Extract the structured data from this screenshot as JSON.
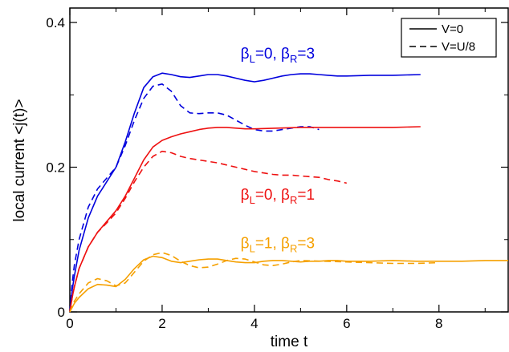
{
  "chart_data": {
    "type": "line",
    "xlabel": "time t",
    "ylabel": "local current <j(t)>",
    "xlim": [
      0,
      9.5
    ],
    "ylim": [
      0,
      0.42
    ],
    "x_ticks": [
      0,
      2,
      4,
      6,
      8
    ],
    "x_tick_labels": [
      "0",
      "2",
      "4",
      "6",
      "8"
    ],
    "y_ticks": [
      0,
      0.2,
      0.4
    ],
    "y_tick_labels": [
      "0",
      "0.2",
      "0.4"
    ],
    "grid": false,
    "legend": {
      "placement": "top-right",
      "entries": [
        {
          "label": "V=0",
          "style": "solid"
        },
        {
          "label": "V=U/8",
          "style": "dashed"
        }
      ]
    },
    "annotations": [
      {
        "text": "βL=0, βR=3",
        "parts": [
          "β",
          "L",
          "=0, β",
          "R",
          "=3"
        ],
        "color": "#0000dd",
        "x": 3.7,
        "y": 0.35
      },
      {
        "text": "βL=0, βR=1",
        "parts": [
          "β",
          "L",
          "=0, β",
          "R",
          "=1"
        ],
        "color": "#ee1111",
        "x": 3.7,
        "y": 0.155
      },
      {
        "text": "βL=1, βR=3",
        "parts": [
          "β",
          "L",
          "=1, β",
          "R",
          "=3"
        ],
        "color": "#f5a000",
        "x": 3.7,
        "y": 0.088
      }
    ],
    "series": [
      {
        "group": "βL=0, βR=3",
        "style": "solid",
        "color": "#0000dd",
        "x": [
          0,
          0.05,
          0.1,
          0.2,
          0.4,
          0.6,
          0.8,
          1.0,
          1.2,
          1.4,
          1.6,
          1.8,
          2.0,
          2.2,
          2.4,
          2.6,
          2.8,
          3.0,
          3.2,
          3.4,
          3.6,
          3.8,
          4.0,
          4.2,
          4.4,
          4.6,
          4.8,
          5.0,
          5.2,
          5.4,
          5.6,
          5.8,
          6.0,
          6.5,
          7.0,
          7.6
        ],
        "y": [
          0,
          0.03,
          0.05,
          0.085,
          0.13,
          0.16,
          0.18,
          0.2,
          0.235,
          0.275,
          0.31,
          0.325,
          0.33,
          0.328,
          0.325,
          0.324,
          0.326,
          0.328,
          0.328,
          0.326,
          0.323,
          0.32,
          0.318,
          0.32,
          0.323,
          0.326,
          0.328,
          0.329,
          0.329,
          0.328,
          0.327,
          0.326,
          0.326,
          0.327,
          0.327,
          0.328
        ]
      },
      {
        "group": "βL=0, βR=3",
        "style": "dashed",
        "color": "#0000dd",
        "x": [
          0,
          0.05,
          0.1,
          0.2,
          0.4,
          0.6,
          0.8,
          1.0,
          1.2,
          1.4,
          1.6,
          1.8,
          2.0,
          2.2,
          2.4,
          2.6,
          2.8,
          3.0,
          3.2,
          3.4,
          3.6,
          3.8,
          4.0,
          4.2,
          4.4,
          4.6,
          4.8,
          5.0,
          5.2,
          5.4
        ],
        "y": [
          0,
          0.04,
          0.065,
          0.1,
          0.145,
          0.17,
          0.185,
          0.2,
          0.23,
          0.265,
          0.295,
          0.312,
          0.315,
          0.305,
          0.285,
          0.275,
          0.274,
          0.275,
          0.275,
          0.272,
          0.265,
          0.258,
          0.252,
          0.25,
          0.25,
          0.252,
          0.254,
          0.256,
          0.256,
          0.252
        ]
      },
      {
        "group": "βL=0, βR=1",
        "style": "solid",
        "color": "#ee1111",
        "x": [
          0,
          0.05,
          0.1,
          0.2,
          0.4,
          0.6,
          0.8,
          1.0,
          1.2,
          1.4,
          1.6,
          1.8,
          2.0,
          2.2,
          2.4,
          2.6,
          2.8,
          3.0,
          3.2,
          3.4,
          3.6,
          3.8,
          4.0,
          4.5,
          5.0,
          5.5,
          6.0,
          6.5,
          7.0,
          7.6
        ],
        "y": [
          0,
          0.02,
          0.035,
          0.06,
          0.09,
          0.11,
          0.125,
          0.14,
          0.16,
          0.185,
          0.21,
          0.228,
          0.237,
          0.242,
          0.246,
          0.249,
          0.252,
          0.254,
          0.255,
          0.255,
          0.254,
          0.253,
          0.253,
          0.254,
          0.255,
          0.255,
          0.255,
          0.255,
          0.255,
          0.256
        ]
      },
      {
        "group": "βL=0, βR=1",
        "style": "dashed",
        "color": "#ee1111",
        "x": [
          0,
          0.05,
          0.1,
          0.2,
          0.4,
          0.6,
          0.8,
          1.0,
          1.2,
          1.4,
          1.6,
          1.8,
          2.0,
          2.2,
          2.4,
          2.6,
          2.8,
          3.0,
          3.2,
          3.4,
          3.6,
          3.8,
          4.0,
          4.2,
          4.4,
          4.6,
          4.8,
          5.0,
          5.2,
          5.4,
          5.6,
          5.8,
          6.0
        ],
        "y": [
          0,
          0.02,
          0.035,
          0.06,
          0.09,
          0.11,
          0.123,
          0.137,
          0.157,
          0.18,
          0.2,
          0.215,
          0.222,
          0.22,
          0.215,
          0.212,
          0.21,
          0.208,
          0.206,
          0.203,
          0.2,
          0.197,
          0.194,
          0.192,
          0.19,
          0.189,
          0.189,
          0.188,
          0.187,
          0.186,
          0.183,
          0.181,
          0.178
        ]
      },
      {
        "group": "βL=1, βR=3",
        "style": "solid",
        "color": "#f5a000",
        "x": [
          0,
          0.1,
          0.2,
          0.4,
          0.6,
          0.8,
          1.0,
          1.2,
          1.4,
          1.6,
          1.8,
          2.0,
          2.2,
          2.4,
          2.6,
          2.8,
          3.0,
          3.2,
          3.4,
          3.6,
          3.8,
          4.0,
          4.2,
          4.4,
          4.6,
          4.8,
          5.0,
          5.2,
          5.4,
          5.6,
          5.8,
          6.0,
          6.5,
          7.0,
          7.5,
          8.0,
          8.5,
          9.0,
          9.5
        ],
        "y": [
          0,
          0.012,
          0.02,
          0.032,
          0.038,
          0.037,
          0.035,
          0.045,
          0.06,
          0.072,
          0.077,
          0.075,
          0.07,
          0.068,
          0.07,
          0.072,
          0.073,
          0.073,
          0.071,
          0.069,
          0.068,
          0.068,
          0.07,
          0.071,
          0.071,
          0.07,
          0.069,
          0.07,
          0.07,
          0.071,
          0.071,
          0.07,
          0.07,
          0.071,
          0.07,
          0.07,
          0.07,
          0.071,
          0.071
        ]
      },
      {
        "group": "βL=1, βR=3",
        "style": "dashed",
        "color": "#f5a000",
        "x": [
          0,
          0.1,
          0.2,
          0.4,
          0.6,
          0.8,
          1.0,
          1.2,
          1.4,
          1.6,
          1.8,
          2.0,
          2.2,
          2.4,
          2.6,
          2.8,
          3.0,
          3.2,
          3.4,
          3.6,
          3.8,
          4.0,
          4.2,
          4.4,
          4.6,
          4.8,
          5.0,
          5.5,
          6.0,
          6.5,
          7.0,
          7.5,
          8.0
        ],
        "y": [
          0,
          0.015,
          0.025,
          0.04,
          0.046,
          0.043,
          0.036,
          0.04,
          0.055,
          0.07,
          0.079,
          0.082,
          0.078,
          0.07,
          0.064,
          0.061,
          0.062,
          0.066,
          0.071,
          0.074,
          0.073,
          0.069,
          0.065,
          0.064,
          0.066,
          0.069,
          0.071,
          0.07,
          0.069,
          0.068,
          0.067,
          0.067,
          0.068
        ]
      }
    ]
  }
}
